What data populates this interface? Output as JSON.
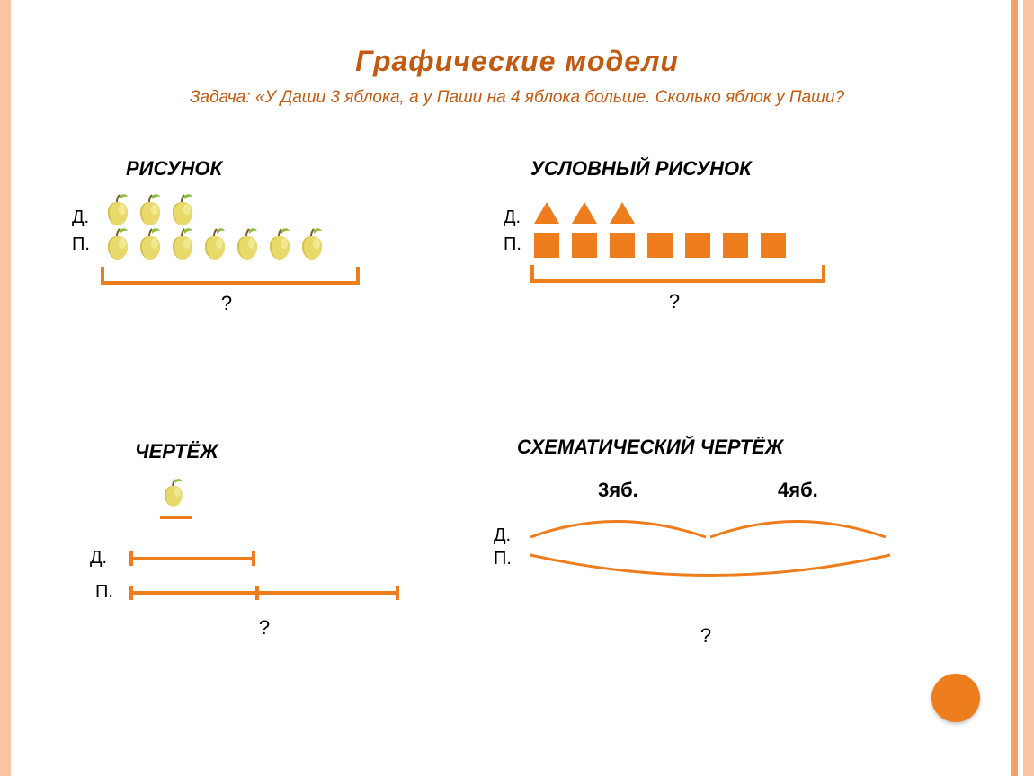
{
  "title": "Графические модели",
  "title_color": "#c35a12",
  "problem": "Задача: «У Даши  3 яблока, а у  Паши на 4 яблока  больше. Сколько яблок у Паши?",
  "problem_color": "#c35a12",
  "accent_color": "#ee7d1d",
  "border_outer_color": "#f8c4a4",
  "border_inner_color": "#f3a06a",
  "labels": {
    "d": "Д.",
    "p": "П.",
    "question": "?"
  },
  "panels": {
    "drawing": {
      "title": "РИСУНОК",
      "rows": {
        "d": {
          "type": "apple",
          "count": 3
        },
        "p": {
          "type": "apple",
          "count": 7
        }
      },
      "bracket_width": 280
    },
    "conventional": {
      "title": "УСЛОВНЫЙ РИСУНОК",
      "rows": {
        "d": {
          "type": "triangle",
          "count": 3
        },
        "p": {
          "type": "square",
          "count": 7
        }
      },
      "shape_color": "#ee7d1d",
      "bracket_width": 320
    },
    "blueprint": {
      "title": "ЧЕРТЁЖ",
      "unit_label_shape": "apple",
      "unit_segment_width": 36,
      "rows": {
        "d": {
          "segment_width": 140
        },
        "p": {
          "segment_width": 300,
          "inner_tick_at": 140
        }
      }
    },
    "schematic": {
      "title": "СХЕМАТИЧЕСКИЙ ЧЕРТЁЖ",
      "arc_labels": {
        "left": "3яб.",
        "right": "4яб."
      },
      "arc1_width": 195,
      "arc2_width": 195,
      "full_arc_width": 400,
      "arc_color": "#ee7d1d"
    }
  }
}
